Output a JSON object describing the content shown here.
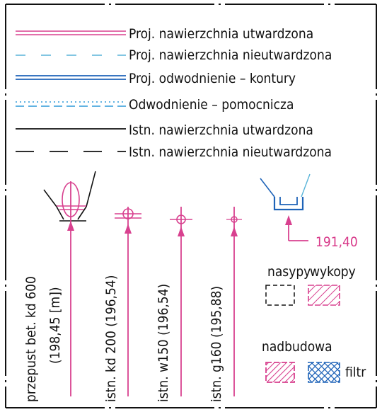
{
  "legend": {
    "items": [
      {
        "label": "Proj. nawierzchnia utwardzona",
        "color": "#d8418f",
        "style": "double-solid"
      },
      {
        "label": "Proj. nawierzchnia nieutwardzona",
        "color": "#58b4d8",
        "style": "dashed-light"
      },
      {
        "label": "Proj. odwodnienie – kontury",
        "color": "#1e63b8",
        "style": "double-solid"
      },
      {
        "label": "Odwodnienie – pomocnicza",
        "color": "#2e9ad8",
        "style": "dotted-double"
      },
      {
        "label": "Istn. nawierzchnia utwardzona",
        "color": "#111111",
        "style": "solid"
      },
      {
        "label": "Istn. nawierzchnia nieutwardzona",
        "color": "#111111",
        "style": "dashed"
      }
    ]
  },
  "symbols": {
    "culvert_label_1": "przepust bet. kd 600",
    "culvert_label_2": "(198,45 [m])",
    "pipe_1": "istn. kd 200 (196,54)",
    "pipe_2": "istn. w150 (196,54)",
    "pipe_3": "istn. g160 (195,88)",
    "elevation": "191,40"
  },
  "hatch": {
    "embankment": "nasypy",
    "excavation": "wykopy",
    "superstructure": "nadbudowa",
    "filter": "filtr"
  },
  "colors": {
    "magenta": "#d8418f",
    "blue": "#1e63b8",
    "light_blue": "#58b4d8",
    "cyan_blue": "#2e9ad8",
    "black": "#111111"
  }
}
